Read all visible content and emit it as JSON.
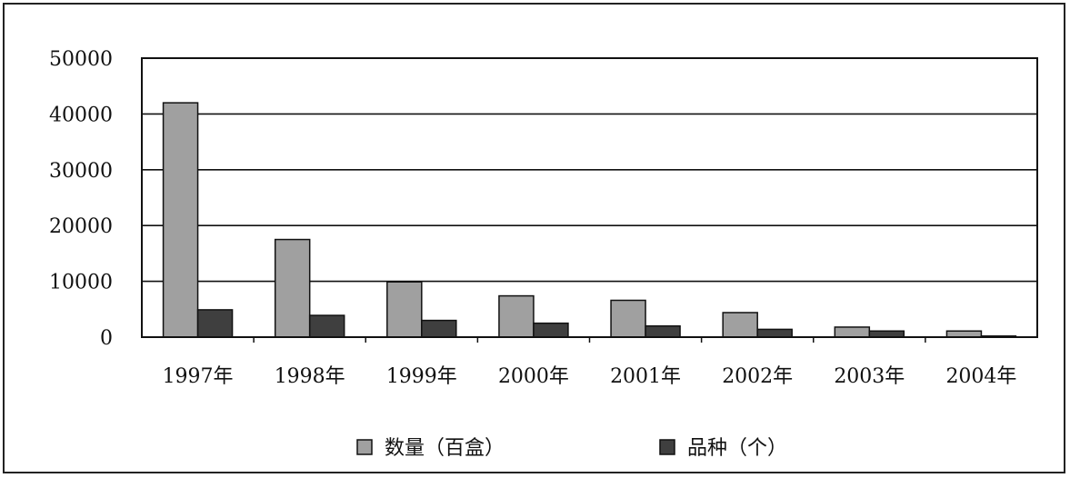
{
  "chart_data": {
    "type": "bar",
    "categories": [
      "1997年",
      "1998年",
      "1999年",
      "2000年",
      "2001年",
      "2002年",
      "2003年",
      "2004年"
    ],
    "series": [
      {
        "name": "数量（百盒）",
        "values": [
          42000,
          17500,
          9900,
          7400,
          6600,
          4400,
          1800,
          1100
        ],
        "color": "#a0a0a0"
      },
      {
        "name": "品种（个）",
        "values": [
          4900,
          3900,
          3000,
          2500,
          2000,
          1400,
          1100,
          200
        ],
        "color": "#3f3f3f"
      }
    ],
    "y_ticks": [
      "0",
      "10000",
      "20000",
      "30000",
      "40000",
      "50000"
    ],
    "ylim": [
      0,
      50000
    ],
    "grid": true,
    "legend_position": "bottom"
  }
}
